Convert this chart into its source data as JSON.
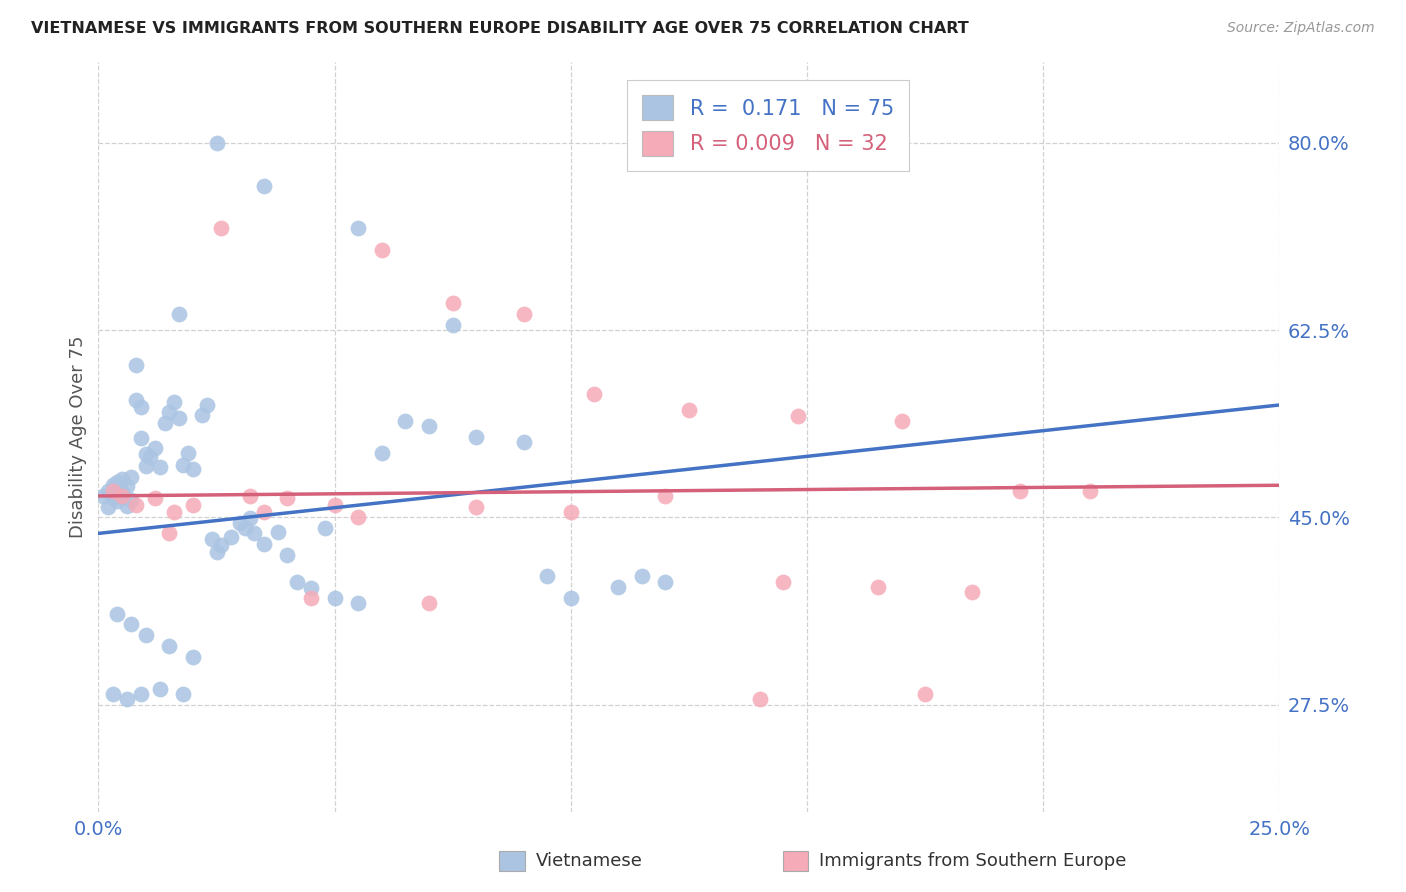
{
  "title": "VIETNAMESE VS IMMIGRANTS FROM SOUTHERN EUROPE DISABILITY AGE OVER 75 CORRELATION CHART",
  "source": "Source: ZipAtlas.com",
  "ylabel": "Disability Age Over 75",
  "xlim": [
    0.0,
    0.25
  ],
  "ylim": [
    0.175,
    0.875
  ],
  "xtick_positions": [
    0.0,
    0.05,
    0.1,
    0.15,
    0.2,
    0.25
  ],
  "xtick_labels": [
    "0.0%",
    "",
    "",
    "",
    "",
    "25.0%"
  ],
  "ytick_positions": [
    0.275,
    0.45,
    0.625,
    0.8
  ],
  "ytick_labels": [
    "27.5%",
    "45.0%",
    "62.5%",
    "80.0%"
  ],
  "label1": "Vietnamese",
  "label2": "Immigrants from Southern Europe",
  "R1": 0.171,
  "N1": 75,
  "R2": 0.009,
  "N2": 32,
  "color1": "#aac4e2",
  "color2": "#f5abb8",
  "line_color1": "#4472c4",
  "line_color2": "#d4607a",
  "viet_x": [
    0.001,
    0.002,
    0.002,
    0.003,
    0.003,
    0.003,
    0.004,
    0.004,
    0.004,
    0.005,
    0.005,
    0.005,
    0.006,
    0.006,
    0.007,
    0.007,
    0.008,
    0.008,
    0.009,
    0.009,
    0.01,
    0.01,
    0.011,
    0.012,
    0.013,
    0.014,
    0.015,
    0.016,
    0.017,
    0.018,
    0.019,
    0.02,
    0.022,
    0.023,
    0.024,
    0.025,
    0.026,
    0.028,
    0.03,
    0.031,
    0.032,
    0.033,
    0.035,
    0.038,
    0.04,
    0.042,
    0.045,
    0.048,
    0.05,
    0.055,
    0.06,
    0.065,
    0.07,
    0.08,
    0.09,
    0.095,
    0.1,
    0.11,
    0.115,
    0.12,
    0.017,
    0.025,
    0.035,
    0.055,
    0.075,
    0.004,
    0.007,
    0.01,
    0.015,
    0.02,
    0.003,
    0.006,
    0.009,
    0.013,
    0.018
  ],
  "viet_y": [
    0.47,
    0.475,
    0.46,
    0.468,
    0.48,
    0.472,
    0.465,
    0.477,
    0.483,
    0.469,
    0.474,
    0.486,
    0.461,
    0.479,
    0.466,
    0.488,
    0.592,
    0.56,
    0.553,
    0.524,
    0.509,
    0.498,
    0.506,
    0.515,
    0.497,
    0.538,
    0.548,
    0.558,
    0.543,
    0.499,
    0.51,
    0.495,
    0.546,
    0.555,
    0.43,
    0.418,
    0.424,
    0.432,
    0.445,
    0.44,
    0.449,
    0.435,
    0.425,
    0.436,
    0.415,
    0.39,
    0.384,
    0.44,
    0.375,
    0.37,
    0.51,
    0.54,
    0.535,
    0.525,
    0.52,
    0.395,
    0.375,
    0.385,
    0.395,
    0.39,
    0.64,
    0.8,
    0.76,
    0.72,
    0.63,
    0.36,
    0.35,
    0.34,
    0.33,
    0.32,
    0.285,
    0.28,
    0.285,
    0.29,
    0.285
  ],
  "south_x": [
    0.003,
    0.005,
    0.008,
    0.012,
    0.016,
    0.02,
    0.026,
    0.032,
    0.04,
    0.05,
    0.06,
    0.075,
    0.09,
    0.105,
    0.125,
    0.148,
    0.17,
    0.195,
    0.035,
    0.055,
    0.08,
    0.1,
    0.12,
    0.145,
    0.165,
    0.185,
    0.21,
    0.015,
    0.045,
    0.07,
    0.14,
    0.175
  ],
  "south_y": [
    0.475,
    0.47,
    0.462,
    0.468,
    0.455,
    0.462,
    0.72,
    0.47,
    0.468,
    0.462,
    0.7,
    0.65,
    0.64,
    0.565,
    0.55,
    0.545,
    0.54,
    0.475,
    0.455,
    0.45,
    0.46,
    0.455,
    0.47,
    0.39,
    0.385,
    0.38,
    0.475,
    0.435,
    0.375,
    0.37,
    0.28,
    0.285
  ],
  "line1_x0": 0.0,
  "line1_y0": 0.435,
  "line1_x1": 0.25,
  "line1_y1": 0.555,
  "line2_x0": 0.0,
  "line2_y0": 0.47,
  "line2_x1": 0.25,
  "line2_y1": 0.48
}
